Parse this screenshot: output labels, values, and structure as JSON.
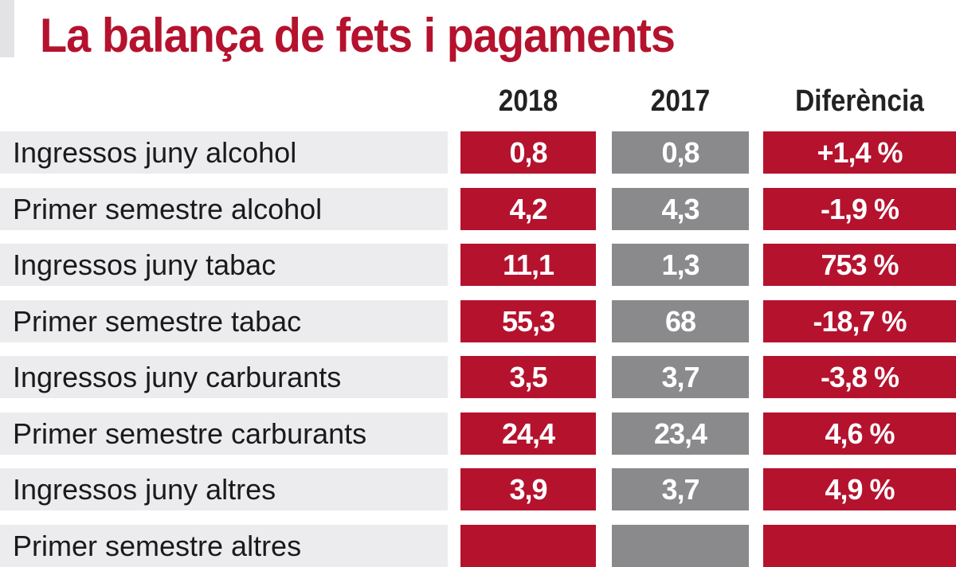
{
  "title": "La balança de fets i pagaments",
  "colors": {
    "accent": "#B5122E",
    "gray": "#8A8A8C",
    "label_bg": "#ECEBEE"
  },
  "chart_data": {
    "type": "table",
    "title": "La balança de fets i pagaments",
    "columns": [
      "2018",
      "2017",
      "Diferència"
    ],
    "rows": [
      {
        "label": "Ingressos juny alcohol",
        "v2018": "0,8",
        "v2017": "0,8",
        "diff": "+1,4 %"
      },
      {
        "label": "Primer semestre alcohol",
        "v2018": "4,2",
        "v2017": "4,3",
        "diff": "-1,9 %"
      },
      {
        "label": "Ingressos juny tabac",
        "v2018": "11,1",
        "v2017": "1,3",
        "diff": "753 %"
      },
      {
        "label": "Primer semestre tabac",
        "v2018": "55,3",
        "v2017": "68",
        "diff": "-18,7 %"
      },
      {
        "label": "Ingressos juny carburants",
        "v2018": "3,5",
        "v2017": "3,7",
        "diff": "-3,8 %"
      },
      {
        "label": "Primer semestre carburants",
        "v2018": "24,4",
        "v2017": "23,4",
        "diff": "4,6 %"
      },
      {
        "label": "Ingressos juny altres",
        "v2018": "3,9",
        "v2017": "3,7",
        "diff": "4,9 %"
      },
      {
        "label": "Primer semestre altres",
        "v2018": "",
        "v2017": "",
        "diff": ""
      }
    ]
  }
}
